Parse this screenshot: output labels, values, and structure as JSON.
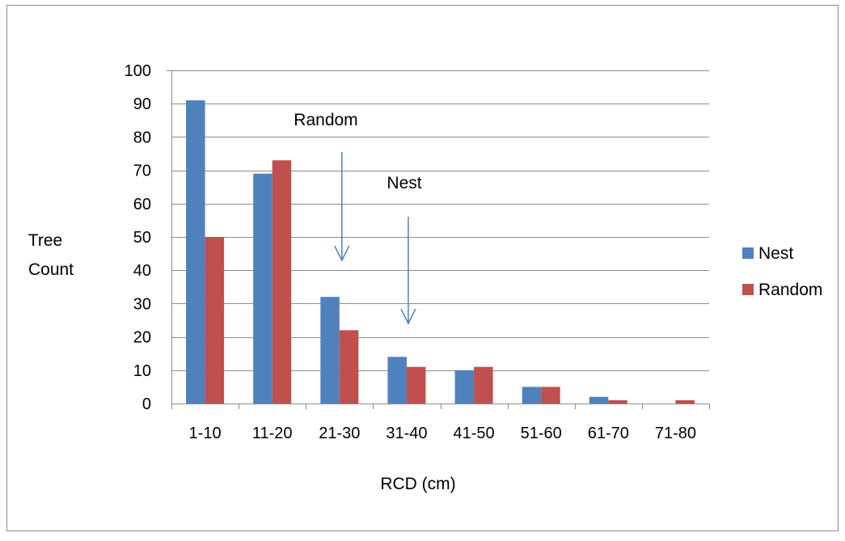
{
  "chart_data": {
    "type": "bar",
    "title": "",
    "xlabel": "RCD (cm)",
    "ylabel": "Tree Count",
    "ylabel_lines": [
      "Tree",
      "Count"
    ],
    "ylim": [
      0,
      100
    ],
    "yticks": [
      0,
      10,
      20,
      30,
      40,
      50,
      60,
      70,
      80,
      90,
      100
    ],
    "categories": [
      "1-10",
      "11-20",
      "21-30",
      "31-40",
      "41-50",
      "51-60",
      "61-70",
      "71-80"
    ],
    "series": [
      {
        "name": "Nest",
        "color": "#4f81bd",
        "values": [
          91,
          69,
          32,
          14,
          10,
          5,
          2,
          0
        ]
      },
      {
        "name": "Random",
        "color": "#c0504d",
        "values": [
          50,
          73,
          22,
          11,
          11,
          5,
          1,
          1
        ]
      }
    ],
    "grid": true,
    "legend_position": "right",
    "annotations": [
      {
        "text": "Random",
        "category": "21-30"
      },
      {
        "text": "Nest",
        "category": "31-40"
      }
    ]
  }
}
